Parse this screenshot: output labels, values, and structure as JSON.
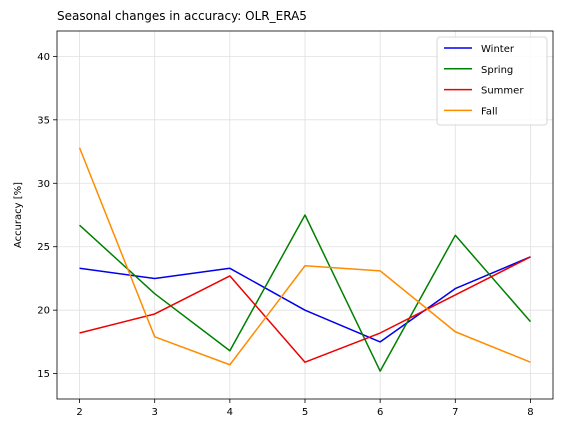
{
  "chart_data": {
    "type": "line",
    "title": "Seasonal changes in accuracy: OLR_ERA5",
    "xlabel": "",
    "ylabel": "Accuracy [%]",
    "x": [
      2,
      3,
      4,
      5,
      6,
      7,
      8
    ],
    "xlim": [
      1.7,
      8.3
    ],
    "ylim": [
      13,
      42
    ],
    "xticks": [
      "2",
      "3",
      "4",
      "5",
      "6",
      "7",
      "8"
    ],
    "yticks": [
      "15",
      "20",
      "25",
      "30",
      "35",
      "40"
    ],
    "grid": true,
    "legend_position": "top-right",
    "series": [
      {
        "name": "Winter",
        "color": "#0000ee",
        "values": [
          23.3,
          22.5,
          23.3,
          20.0,
          17.5,
          21.7,
          24.2
        ]
      },
      {
        "name": "Spring",
        "color": "#008000",
        "values": [
          26.7,
          21.3,
          16.8,
          27.5,
          15.2,
          25.9,
          19.1
        ]
      },
      {
        "name": "Summer",
        "color": "#ee0000",
        "values": [
          18.2,
          19.7,
          22.7,
          15.9,
          18.2,
          21.2,
          24.2
        ]
      },
      {
        "name": "Fall",
        "color": "#ff8c00",
        "values": [
          32.8,
          17.9,
          15.7,
          23.5,
          23.1,
          18.3,
          15.9
        ]
      }
    ]
  }
}
